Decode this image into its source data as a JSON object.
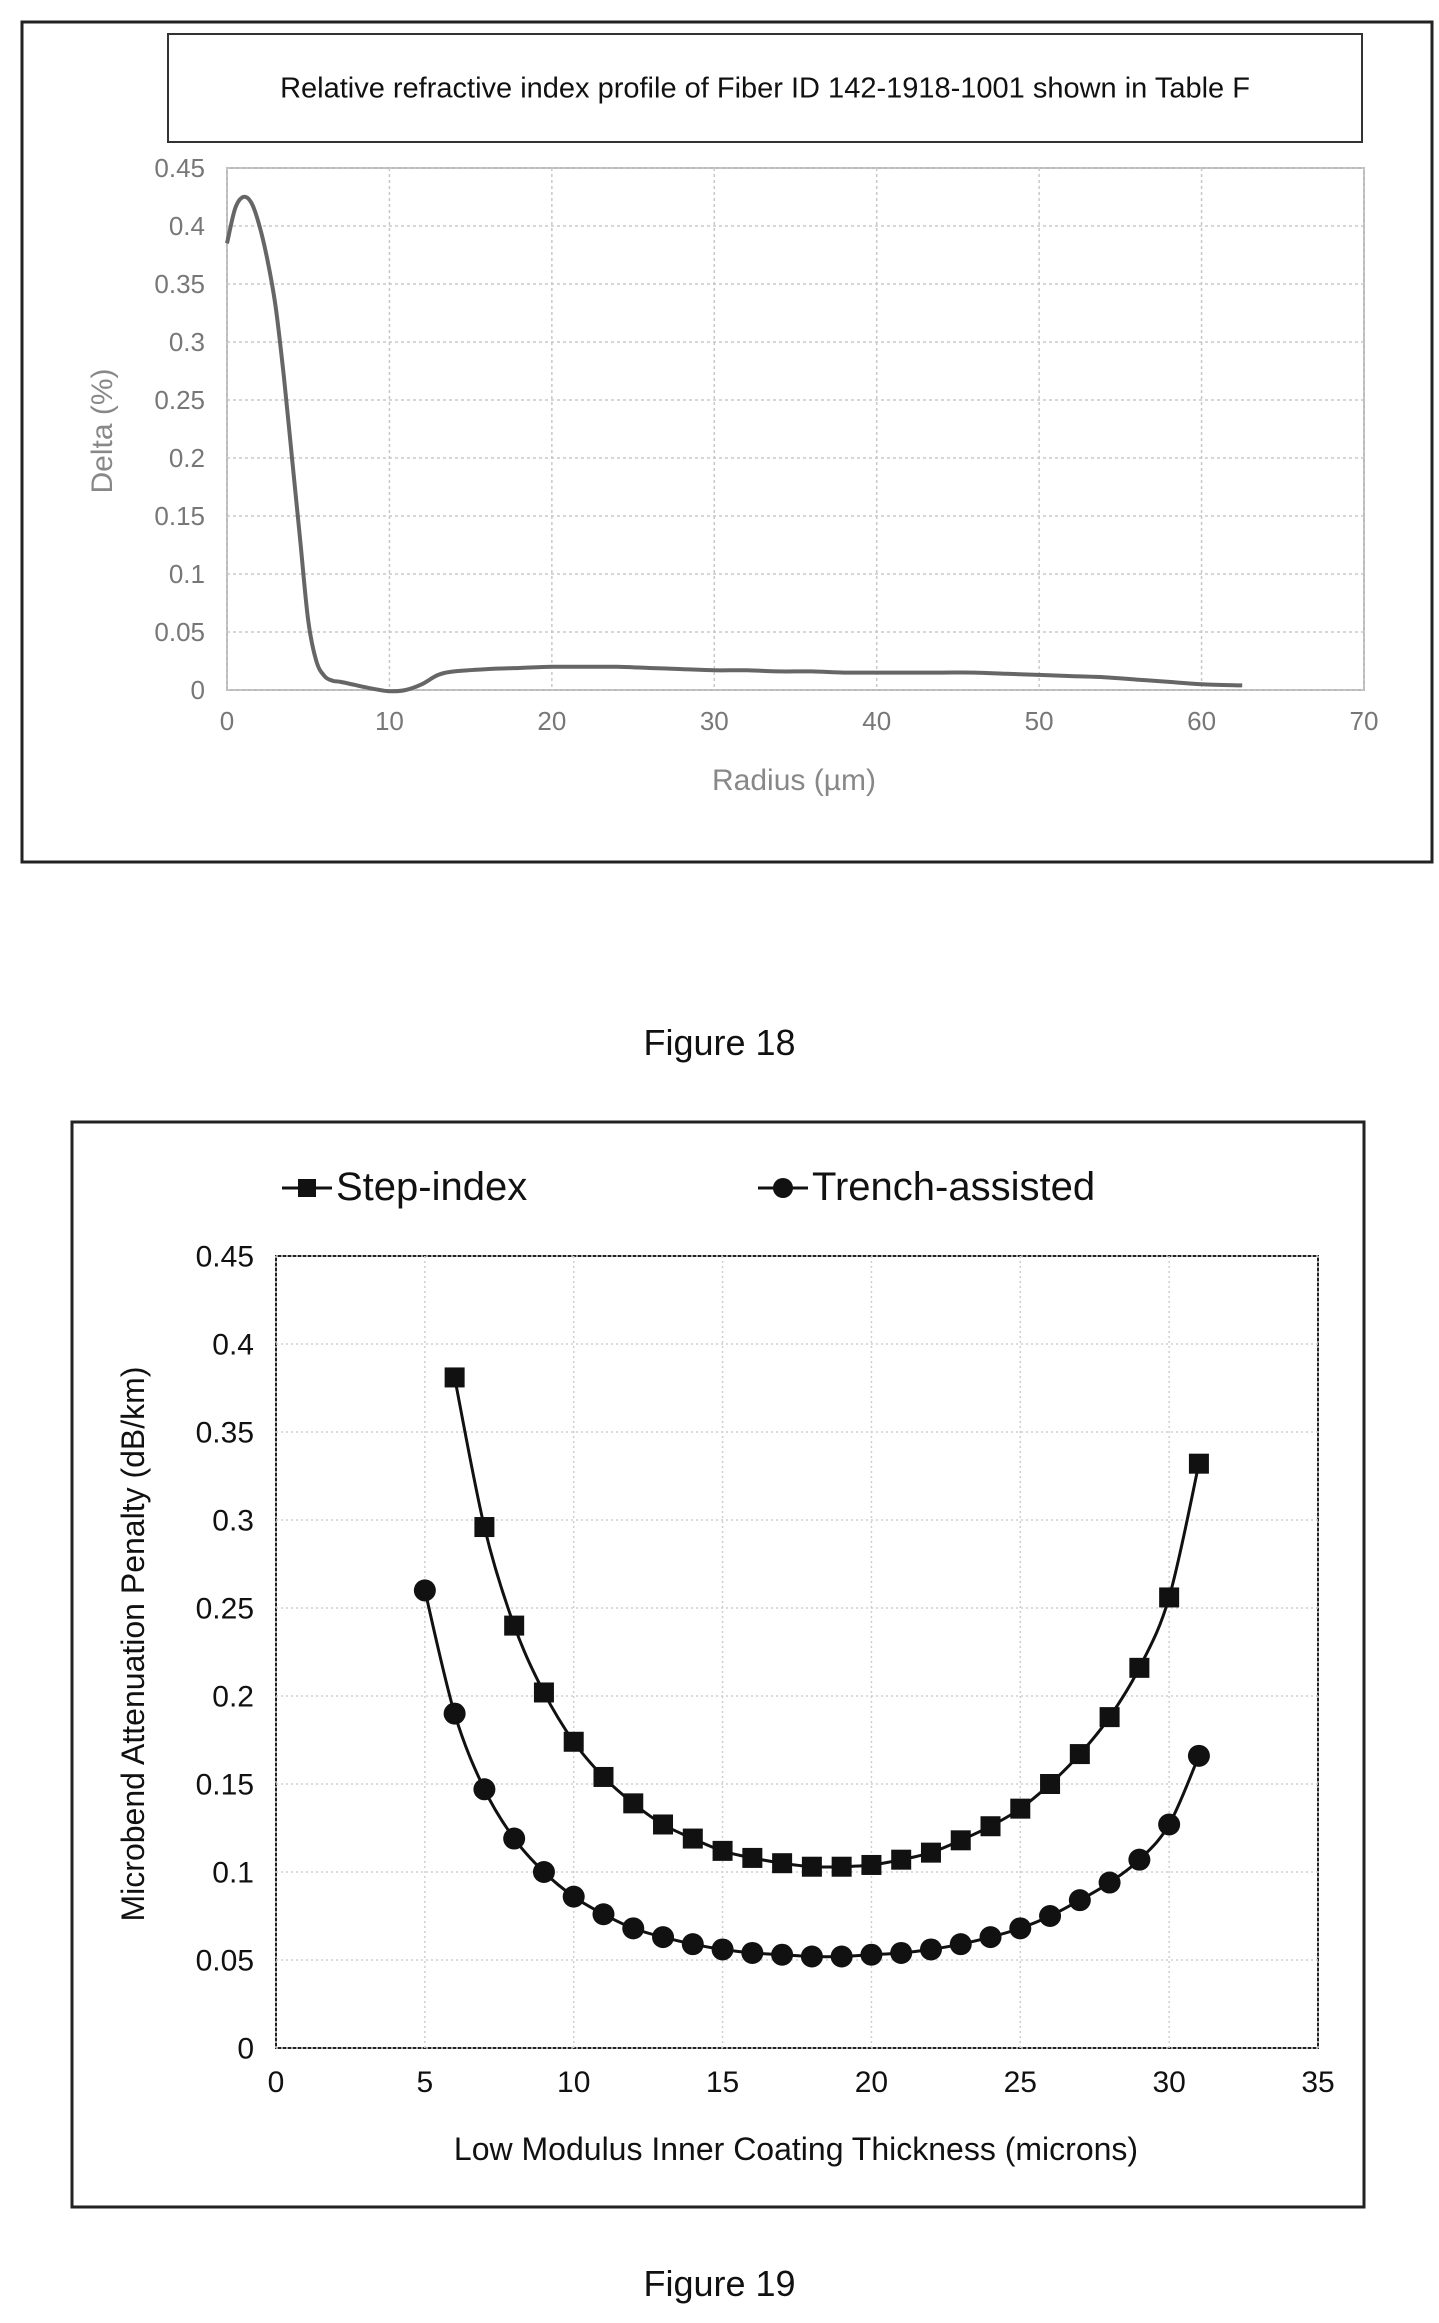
{
  "figures": {
    "fig18_caption": "Figure 18",
    "fig19_caption": "Figure 19"
  },
  "chart_data": [
    {
      "type": "line",
      "title": "Relative refractive index profile of Fiber ID 142-1918-1001 shown in Table F",
      "xlabel": "Radius (µm)",
      "ylabel": "Delta (%)",
      "xlim": [
        0,
        70
      ],
      "ylim": [
        0,
        0.45
      ],
      "x_ticks": [
        "0",
        "10",
        "20",
        "30",
        "40",
        "50",
        "60",
        "70"
      ],
      "y_ticks": [
        "0",
        "0.05",
        "0.1",
        "0.15",
        "0.2",
        "0.25",
        "0.3",
        "0.35",
        "0.4",
        "0.45"
      ],
      "grid": true,
      "line_color": "#666666",
      "series": [
        {
          "x": [
            0,
            0.5,
            1,
            1.5,
            2,
            2.5,
            3,
            3.5,
            4,
            4.5,
            5,
            5.5,
            6,
            6.5,
            7,
            8,
            9,
            10,
            11,
            12,
            13,
            14,
            16,
            18,
            20,
            22,
            24,
            26,
            28,
            30,
            32,
            34,
            36,
            38,
            40,
            42,
            44,
            46,
            48,
            50,
            52,
            54,
            56,
            58,
            60,
            62.5
          ],
          "y": [
            0.385,
            0.415,
            0.425,
            0.42,
            0.4,
            0.37,
            0.33,
            0.27,
            0.2,
            0.13,
            0.06,
            0.025,
            0.012,
            0.008,
            0.007,
            0.004,
            0.001,
            -0.001,
            0.0,
            0.005,
            0.013,
            0.016,
            0.018,
            0.019,
            0.02,
            0.02,
            0.02,
            0.019,
            0.018,
            0.017,
            0.017,
            0.016,
            0.016,
            0.015,
            0.015,
            0.015,
            0.015,
            0.015,
            0.014,
            0.013,
            0.012,
            0.011,
            0.009,
            0.007,
            0.005,
            0.004
          ]
        }
      ]
    },
    {
      "type": "line",
      "xlabel": "Low Modulus Inner Coating Thickness (microns)",
      "ylabel": "Microbend Attenuation Penalty (dB/km)",
      "xlim": [
        0,
        35
      ],
      "ylim": [
        0,
        0.45
      ],
      "x_ticks": [
        "0",
        "5",
        "10",
        "15",
        "20",
        "25",
        "30",
        "35"
      ],
      "y_ticks": [
        "0",
        "0.05",
        "0.1",
        "0.15",
        "0.2",
        "0.25",
        "0.3",
        "0.35",
        "0.4",
        "0.45"
      ],
      "grid": true,
      "legend": "top",
      "series": [
        {
          "name": "Step-index",
          "marker": "square",
          "x": [
            6,
            7,
            8,
            9,
            10,
            11,
            12,
            13,
            14,
            15,
            16,
            17,
            18,
            19,
            20,
            21,
            22,
            23,
            24,
            25,
            26,
            27,
            28,
            29,
            30,
            31
          ],
          "y": [
            0.381,
            0.296,
            0.24,
            0.202,
            0.174,
            0.154,
            0.139,
            0.127,
            0.119,
            0.112,
            0.108,
            0.105,
            0.103,
            0.103,
            0.104,
            0.107,
            0.111,
            0.118,
            0.126,
            0.136,
            0.15,
            0.167,
            0.188,
            0.216,
            0.256,
            0.332
          ]
        },
        {
          "name": "Trench-assisted",
          "marker": "circle",
          "x": [
            5,
            6,
            7,
            8,
            9,
            10,
            11,
            12,
            13,
            14,
            15,
            16,
            17,
            18,
            19,
            20,
            21,
            22,
            23,
            24,
            25,
            26,
            27,
            28,
            29,
            30,
            31
          ],
          "y": [
            0.26,
            0.19,
            0.147,
            0.119,
            0.1,
            0.086,
            0.076,
            0.068,
            0.063,
            0.059,
            0.056,
            0.054,
            0.053,
            0.052,
            0.052,
            0.053,
            0.054,
            0.056,
            0.059,
            0.063,
            0.068,
            0.075,
            0.084,
            0.094,
            0.107,
            0.127,
            0.166
          ]
        }
      ]
    }
  ]
}
